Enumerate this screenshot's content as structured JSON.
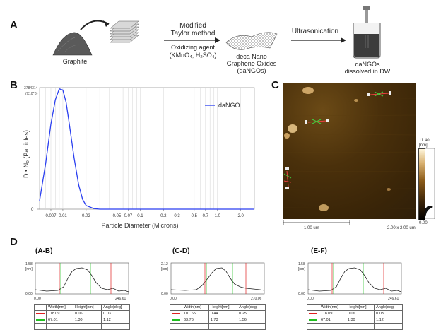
{
  "panelA": {
    "letter": "A",
    "graphite_label": "Graphite",
    "method_title_1": "Modified",
    "method_title_2": "Taylor method",
    "reagent_line1": "Oxidizing agent",
    "reagent_line2": "(KMnO₄, H₂SO₄)",
    "dango_line1": "deca Nano",
    "dango_line2": "Graphene Oxides",
    "dango_line3": "(daNGOs)",
    "ultrasonication_label": "Ultrasonication",
    "dissolved_line1": "daNGOs",
    "dissolved_line2": "dissolved in DW"
  },
  "panelB": {
    "letter": "B",
    "chart_data": {
      "type": "line",
      "xlabel": "Particle Diameter (Microns)",
      "ylabel": "D • N₀ (Particles)",
      "x_scale": "log",
      "xlim": [
        0.005,
        3.0
      ],
      "ylim": [
        0,
        1.0
      ],
      "x_ticks": [
        {
          "value": 0.007,
          "label": "0.007"
        },
        {
          "value": 0.01,
          "label": "0.01"
        },
        {
          "value": 0.02,
          "label": "0.02"
        },
        {
          "value": 0.05,
          "label": "0.05"
        },
        {
          "value": 0.07,
          "label": "0.07"
        },
        {
          "value": 0.1,
          "label": "0.1"
        },
        {
          "value": 0.2,
          "label": "0.2"
        },
        {
          "value": 0.3,
          "label": "0.3"
        },
        {
          "value": 0.5,
          "label": "0.5"
        },
        {
          "value": 0.7,
          "label": "0.7"
        },
        {
          "value": 1.0,
          "label": "1.0"
        },
        {
          "value": 2.0,
          "label": "2.0"
        }
      ],
      "y_top_label_1": "3784314",
      "y_top_label_2": "(X10^6)",
      "y_zero_label": "0",
      "legend_position": "top-right",
      "series": [
        {
          "name": "daNGO",
          "color": "#2a3ff0",
          "x": [
            0.005,
            0.006,
            0.007,
            0.008,
            0.009,
            0.01,
            0.011,
            0.012,
            0.014,
            0.016,
            0.018,
            0.02,
            0.025,
            0.03,
            0.04,
            0.05,
            0.1,
            0.5,
            1.0,
            3.0
          ],
          "y": [
            0.07,
            0.38,
            0.7,
            0.9,
            0.99,
            0.98,
            0.88,
            0.72,
            0.42,
            0.2,
            0.08,
            0.03,
            0.005,
            0.0,
            0.0,
            0.0,
            0.0,
            0.0,
            0.0,
            0.0
          ]
        }
      ]
    }
  },
  "panelC": {
    "letter": "C",
    "scale_label": "1.00 um",
    "size_label": "2.00 x 2.00 um",
    "colorbar_max": "11.40",
    "colorbar_unit": "[nm]",
    "colorbar_min": "0.00"
  },
  "panelD": {
    "letter": "D",
    "profiles": [
      {
        "title": "(A-B)",
        "ymax": "1.58",
        "yunit": "[nm]",
        "ymin": "0.00",
        "xmin": "0.00",
        "xmax": "246.61",
        "table": {
          "headers": [
            "Width[nm]",
            "Height[nm]",
            "Angle[deg]"
          ],
          "rows": [
            {
              "color": "#e02020",
              "width": "118.09",
              "height": "0.06",
              "angle": "0.03"
            },
            {
              "color": "#20c020",
              "width": "67.01",
              "height": "1.30",
              "angle": "1.12"
            }
          ]
        }
      },
      {
        "title": "(C-D)",
        "ymax": "2.12",
        "yunit": "[nm]",
        "ymin": "0.00",
        "xmin": "0.00",
        "xmax": "270.06",
        "table": {
          "headers": [
            "Width[nm]",
            "Height[nm]",
            "Angle[deg]"
          ],
          "rows": [
            {
              "color": "#e02020",
              "width": "101.65",
              "height": "0.44",
              "angle": "0.25"
            },
            {
              "color": "#20c020",
              "width": "63.76",
              "height": "1.73",
              "angle": "1.56"
            }
          ]
        }
      },
      {
        "title": "(E-F)",
        "ymax": "1.58",
        "yunit": "[nm]",
        "ymin": "0.00",
        "xmin": "0.00",
        "xmax": "246.61",
        "table": {
          "headers": [
            "Width[nm]",
            "Height[nm]",
            "Angle[deg]"
          ],
          "rows": [
            {
              "color": "#e02020",
              "width": "118.09",
              "height": "0.06",
              "angle": "0.03"
            },
            {
              "color": "#20c020",
              "width": "67.01",
              "height": "1.30",
              "angle": "1.12"
            }
          ]
        }
      }
    ]
  }
}
